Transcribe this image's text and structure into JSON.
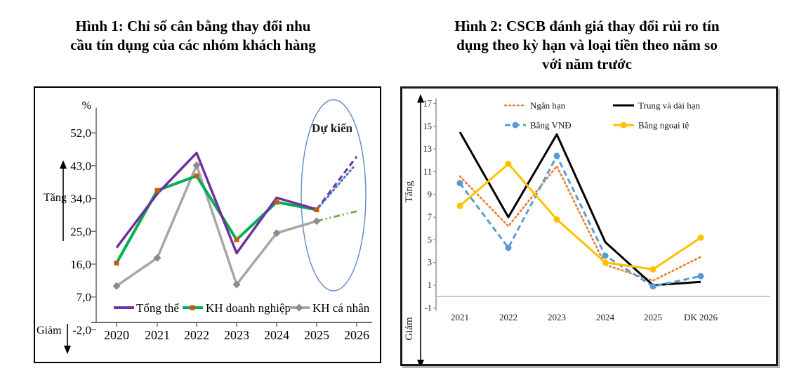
{
  "figure1": {
    "title_lines": [
      "Hình 1:  Chỉ số cân bằng thay đổi nhu",
      "cầu tín dụng của các nhóm khách hàng"
    ]
  },
  "figure2": {
    "title_lines": [
      "Hình 2: CSCB đánh giá thay đổi rủi ro tín",
      "dụng theo kỳ hạn và loại tiền theo năm so",
      "với năm trước"
    ]
  },
  "chart_data": [
    {
      "type": "line",
      "title": "Chỉ số cân bằng thay đổi nhu cầu tín dụng của các nhóm khách hàng",
      "unit_label": "%",
      "x_tick_labels": [
        "2020",
        "2021",
        "2022",
        "2023",
        "2024",
        "2025",
        "2026"
      ],
      "ytick_labels": [
        "52,0",
        "43,0",
        "34,0",
        "25,0",
        "16,0",
        "7,0",
        "-2,0"
      ],
      "ytick_values": [
        52,
        43,
        34,
        25,
        16,
        7,
        -2
      ],
      "ylim": [
        -2,
        56
      ],
      "grid": false,
      "legend_position": "bottom-inside",
      "axis_annotations": {
        "up": "Tăng",
        "down": "Giảm"
      },
      "forecast_label": "Dự kiến",
      "forecast_ellipse_color": "#4472C4",
      "series": [
        {
          "name": "Tổng thể",
          "color": "#7030A0",
          "style": "solid",
          "marker": "none",
          "values": [
            20.5,
            35.3,
            46.5,
            19.0,
            34.2,
            31.0
          ],
          "forecast_2026": {
            "value": 45.5,
            "style": "dashed",
            "color": "#7030A0"
          }
        },
        {
          "name": "KH doanh nghiệp",
          "color": "#00B050",
          "style": "solid",
          "marker": "square",
          "marker_color": "#C55A11",
          "values": [
            16.3,
            36.2,
            40.2,
            22.7,
            33.0,
            30.9
          ],
          "forecast_2026": {
            "value": 43.0,
            "style": "dotted",
            "color": "#4472C4"
          }
        },
        {
          "name": "KH cá nhân",
          "color": "#A6A6A6",
          "style": "solid",
          "marker": "diamond",
          "marker_color": "#8C8C8C",
          "values": [
            10.0,
            17.7,
            43.1,
            10.4,
            24.5,
            27.8
          ],
          "forecast_2026": {
            "value": 30.5,
            "style": "dashdot",
            "color": "#70AD47"
          }
        }
      ]
    },
    {
      "type": "line",
      "title": "CSCB đánh giá thay đổi rủi ro tín dụng theo kỳ hạn và loại tiền theo năm so với năm trước",
      "x_tick_labels": [
        "2021",
        "2022",
        "2023",
        "2024",
        "2025",
        "DK 2026"
      ],
      "ytick_values": [
        17,
        15,
        13,
        11,
        9,
        7,
        5,
        3,
        1,
        -1
      ],
      "ylim": [
        -1,
        17
      ],
      "grid": false,
      "legend_position": "top-inside",
      "axis_annotations": {
        "up": "Tăng",
        "down": "Giảm"
      },
      "series": [
        {
          "name": "Ngắn hạn",
          "color": "#ED7D31",
          "style": "dotted",
          "marker": "none",
          "values": [
            10.6,
            6.2,
            11.5,
            2.8,
            1.4,
            3.5
          ]
        },
        {
          "name": "Trung và dài hạn",
          "color": "#000000",
          "style": "solid",
          "marker": "none",
          "values": [
            14.5,
            7.0,
            14.3,
            4.8,
            1.0,
            1.3
          ]
        },
        {
          "name": "Bằng VNĐ",
          "color": "#5B9BD5",
          "style": "dashed",
          "marker": "circle",
          "values": [
            10.0,
            4.3,
            12.4,
            3.6,
            0.9,
            1.8
          ]
        },
        {
          "name": "Bằng ngoại tệ",
          "color": "#FFC000",
          "style": "solid",
          "marker": "circle",
          "values": [
            8.0,
            11.7,
            6.8,
            3.0,
            2.4,
            5.2
          ]
        }
      ]
    }
  ]
}
